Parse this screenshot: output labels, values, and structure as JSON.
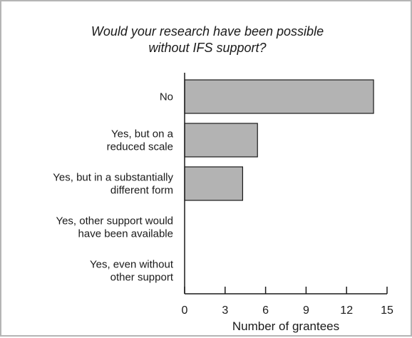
{
  "chart_data": {
    "type": "bar",
    "orientation": "horizontal",
    "title_lines": [
      "Would your research have been possible",
      "without IFS support?"
    ],
    "categories": [
      [
        "No"
      ],
      [
        "Yes, but on a",
        "reduced scale"
      ],
      [
        "Yes, but in a substantially",
        "different form"
      ],
      [
        "Yes, other support would",
        "have been available"
      ],
      [
        "Yes, even without",
        "other support"
      ]
    ],
    "values": [
      14,
      5.4,
      4.3,
      0,
      0
    ],
    "xlabel": "Number of grantees",
    "xlim": [
      0,
      15
    ],
    "xticks": [
      0,
      3,
      6,
      9,
      12,
      15
    ],
    "grid": false,
    "bar_color": "#b3b3b3",
    "bar_edge_color": "#1a1a1a"
  }
}
